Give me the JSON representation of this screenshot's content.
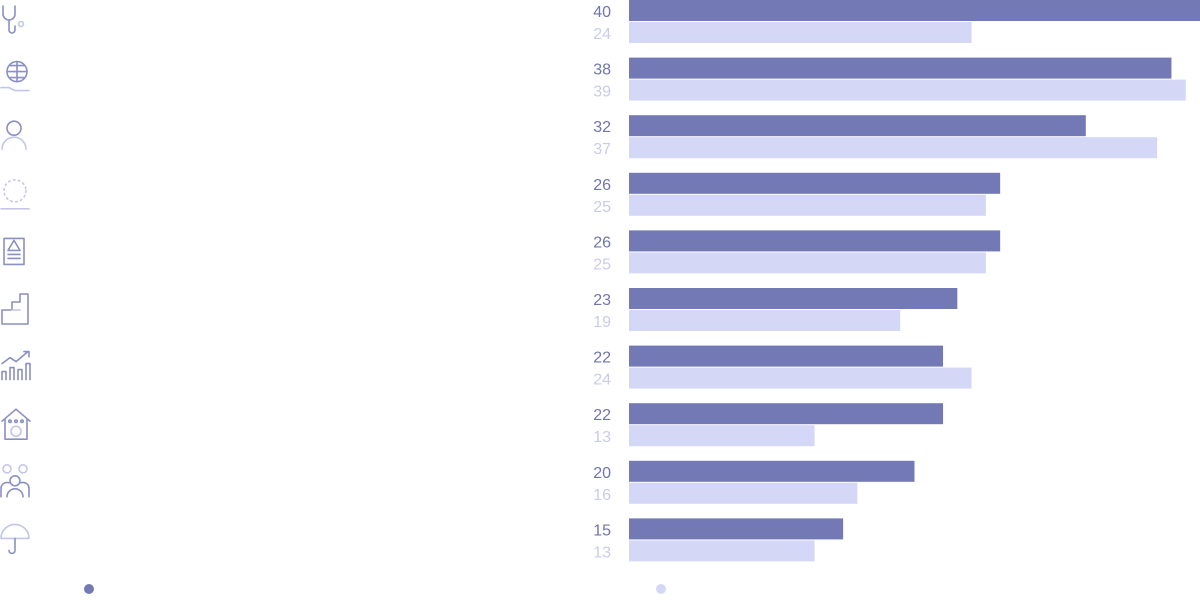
{
  "chart_data": {
    "type": "bar",
    "orientation": "horizontal",
    "categories": [
      "",
      "",
      "",
      "",
      "",
      "",
      "",
      "",
      "",
      ""
    ],
    "category_icons": [
      "stethoscope-icon",
      "globe-hand-icon",
      "person-icon",
      "stars-circle-icon",
      "document-building-icon",
      "factory-icon",
      "growth-chart-icon",
      "house-icon",
      "family-icon",
      "umbrella-icon"
    ],
    "series": [
      {
        "values": [
          40,
          38,
          32,
          26,
          26,
          23,
          22,
          22,
          20,
          15
        ]
      },
      {
        "values": [
          24,
          39,
          37,
          25,
          25,
          19,
          24,
          13,
          16,
          13
        ]
      }
    ],
    "xlim": [
      0,
      40
    ],
    "grid": false,
    "legend": "bottom",
    "colors": {
      "series_1": "#7379b4",
      "series_2": "#d5d7f6",
      "label_1": "#6f75ad",
      "label_2": "#c9cbed",
      "icon": "#8a8fc4"
    }
  }
}
